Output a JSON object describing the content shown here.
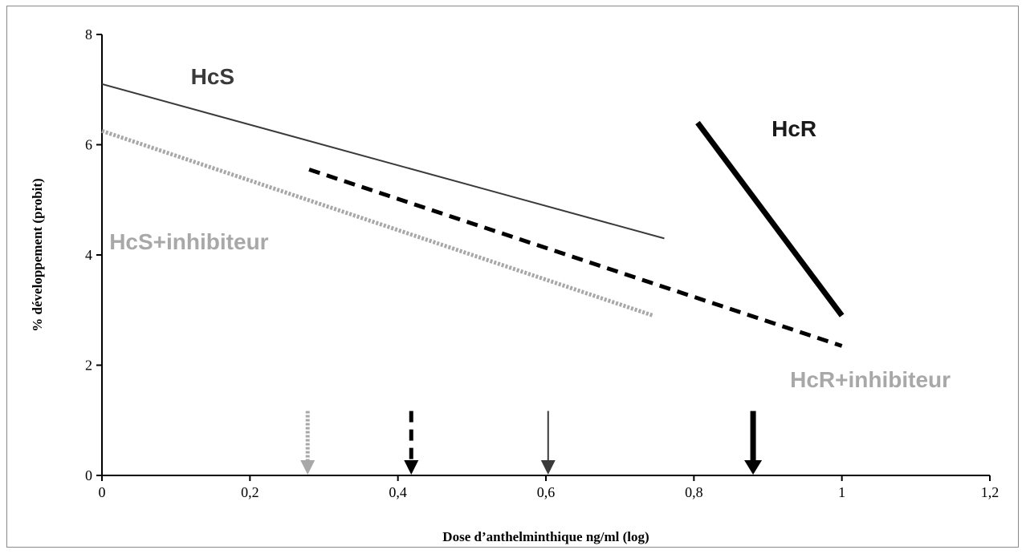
{
  "chart_data": {
    "type": "line",
    "title": "",
    "xlabel": "Dose d’anthelminthique ng/ml (log)",
    "ylabel": "% développement (probit)",
    "xlim": [
      0,
      1.2
    ],
    "ylim": [
      0,
      8
    ],
    "x_ticks": [
      0,
      0.2,
      0.4,
      0.6,
      0.8,
      1.0,
      1.2
    ],
    "x_tick_labels": [
      "0",
      "0,2",
      "0,4",
      "0,6",
      "0,8",
      "1",
      "1,2"
    ],
    "y_ticks": [
      0,
      2,
      4,
      6,
      8
    ],
    "y_tick_labels": [
      "0",
      "2",
      "4",
      "6",
      "8"
    ],
    "grid": false,
    "series": [
      {
        "name": "HcS",
        "style": "thin-solid",
        "color": "#3a3a3a",
        "x": [
          0,
          0.76
        ],
        "y": [
          7.1,
          4.3
        ]
      },
      {
        "name": "HcS+inhibiteur",
        "style": "dotted",
        "color": "#a8a8a8",
        "x": [
          0,
          0.745
        ],
        "y": [
          6.25,
          2.9
        ]
      },
      {
        "name": "",
        "style": "dashed",
        "color": "#000000",
        "x": [
          0.28,
          1.0
        ],
        "y": [
          5.55,
          2.35
        ]
      },
      {
        "name": "HcR",
        "style": "thick-solid",
        "color": "#000000",
        "x": [
          0.805,
          1.0
        ],
        "y": [
          6.4,
          2.9
        ]
      }
    ],
    "labels": [
      {
        "text": "HcS",
        "color": "#3a3a3a",
        "x": 0.12,
        "y": 7.1
      },
      {
        "text": "HcR",
        "color": "#1a1a1a",
        "x": 0.905,
        "y": 6.15
      },
      {
        "text": "HcS+inhibiteur",
        "color": "#a8a8a8",
        "x": 0.01,
        "y": 4.1
      },
      {
        "text": "HcR+inhibiteur",
        "color": "#a8a8a8",
        "x": 0.93,
        "y": 1.6
      }
    ],
    "arrows": [
      {
        "x": 0.278,
        "style": "dotted",
        "color": "#a8a8a8"
      },
      {
        "x": 0.418,
        "style": "dashed",
        "color": "#000000"
      },
      {
        "x": 0.603,
        "style": "thin-solid",
        "color": "#3a3a3a"
      },
      {
        "x": 0.88,
        "style": "thick-solid",
        "color": "#000000"
      }
    ]
  }
}
